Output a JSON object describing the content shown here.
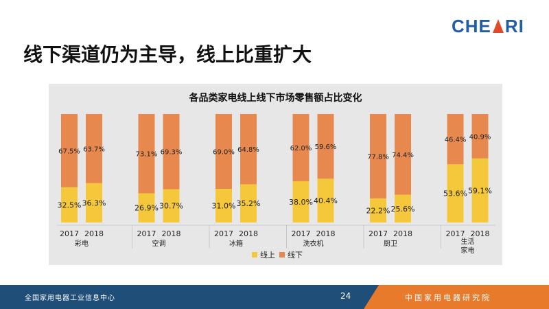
{
  "logo": {
    "left": "CHE",
    "right": "RI"
  },
  "slide_title": "线下渠道仍为主导，线上比重扩大",
  "footer": {
    "left_text": "全国家用电器工业信息中心",
    "page_number": "24",
    "right_text": "中国家用电器研究院"
  },
  "colors": {
    "online": "#f5c83c",
    "offline": "#e7894f",
    "panel": "#e7e7e7",
    "footer": "#1f4e79",
    "footer_accent": "#e87a2c"
  },
  "chart_data": {
    "type": "bar",
    "stacked": true,
    "percent_stacked": true,
    "title": "各品类家电线上线下市场零售额占比变化",
    "years": [
      "2017",
      "2018"
    ],
    "categories": [
      "彩电",
      "空调",
      "冰箱",
      "洗衣机",
      "厨卫",
      "生活家电"
    ],
    "series": [
      {
        "name": "线上",
        "color": "#f5c83c",
        "values": [
          [
            32.5,
            36.3
          ],
          [
            26.9,
            30.7
          ],
          [
            31.0,
            35.2
          ],
          [
            38.0,
            40.4
          ],
          [
            22.2,
            25.6
          ],
          [
            53.6,
            59.1
          ]
        ],
        "labels": [
          [
            "32.5%",
            "36.3%"
          ],
          [
            "26.9%",
            "30.7%"
          ],
          [
            "31.0%",
            "35.2%"
          ],
          [
            "38.0%",
            "40.4%"
          ],
          [
            "22.2%",
            "25.6%"
          ],
          [
            "53.6%",
            "59.1%"
          ]
        ]
      },
      {
        "name": "线下",
        "color": "#e7894f",
        "values": [
          [
            67.5,
            63.7
          ],
          [
            73.1,
            69.3
          ],
          [
            69.0,
            64.8
          ],
          [
            62.0,
            59.6
          ],
          [
            77.8,
            74.4
          ],
          [
            46.4,
            40.9
          ]
        ],
        "labels": [
          [
            "67.5%",
            "63.7%"
          ],
          [
            "73.1%",
            "69.3%"
          ],
          [
            "69.0%",
            "64.8%"
          ],
          [
            "62.0%",
            "59.6%"
          ],
          [
            "77.8%",
            "74.4%"
          ],
          [
            "46.4%",
            "40.9%"
          ]
        ]
      }
    ],
    "ylim": [
      0,
      100
    ],
    "grid": false,
    "legend_position": "bottom-center"
  }
}
